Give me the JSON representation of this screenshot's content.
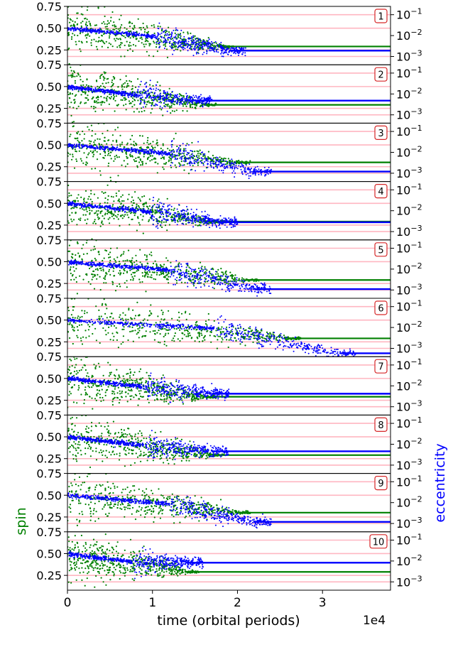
{
  "chart_data": {
    "type": "scatter",
    "panel_count": 10,
    "shared_x_axis": {
      "label": "time (orbital periods)",
      "offset_text": "1e4",
      "range": [
        0,
        3.8
      ],
      "ticks": [
        0,
        1,
        2,
        3
      ],
      "tick_labels": [
        "0",
        "1",
        "2",
        "3"
      ]
    },
    "left_axis": {
      "label": "spin",
      "range": [
        0.08,
        0.75
      ],
      "ticks": [
        0.25,
        0.5,
        0.75
      ],
      "tick_labels": [
        "0.25",
        "0.50",
        "0.75"
      ],
      "color": "#008000"
    },
    "right_axis": {
      "label": "eccentricity",
      "scale": "log",
      "range": [
        0.0004,
        0.25
      ],
      "ticks": [
        0.001,
        0.01,
        0.1
      ],
      "tick_labels": [
        "10",
        "10",
        "10"
      ],
      "tick_exponents": [
        "−3",
        "−2",
        "−1"
      ],
      "color": "#0000ff"
    },
    "reference_lines": {
      "spin_values": [
        0.25,
        0.5
      ],
      "eccentricity_values": [
        0.001,
        0.1
      ],
      "color": "#ffb6c1"
    },
    "series_colors": {
      "spin": "#008000",
      "eccentricity": "#0000ff"
    },
    "panels": [
      {
        "label": "1",
        "spin_final": 0.29,
        "spin_t_settle": 1.8,
        "ecc_initial": 0.022,
        "ecc_final": 0.0019,
        "ecc_t_settle": 1.9
      },
      {
        "label": "2",
        "spin_final": 0.29,
        "spin_t_settle": 1.6,
        "ecc_initial": 0.022,
        "ecc_final": 0.0048,
        "ecc_t_settle": 1.5
      },
      {
        "label": "3",
        "spin_final": 0.3,
        "spin_t_settle": 2.0,
        "ecc_initial": 0.022,
        "ecc_final": 0.0012,
        "ecc_t_settle": 2.2
      },
      {
        "label": "4",
        "spin_final": 0.29,
        "spin_t_settle": 1.7,
        "ecc_initial": 0.022,
        "ecc_final": 0.0028,
        "ecc_t_settle": 1.8
      },
      {
        "label": "5",
        "spin_final": 0.29,
        "spin_t_settle": 2.1,
        "ecc_initial": 0.022,
        "ecc_final": 0.0011,
        "ecc_t_settle": 2.2
      },
      {
        "label": "6",
        "spin_final": 0.29,
        "spin_t_settle": 2.6,
        "ecc_initial": 0.022,
        "ecc_final": 0.00058,
        "ecc_t_settle": 3.2
      },
      {
        "label": "7",
        "spin_final": 0.29,
        "spin_t_settle": 1.6,
        "ecc_initial": 0.022,
        "ecc_final": 0.0042,
        "ecc_t_settle": 1.7
      },
      {
        "label": "8",
        "spin_final": 0.29,
        "spin_t_settle": 1.7,
        "ecc_initial": 0.022,
        "ecc_final": 0.0046,
        "ecc_t_settle": 1.7
      },
      {
        "label": "9",
        "spin_final": 0.3,
        "spin_t_settle": 2.0,
        "ecc_initial": 0.022,
        "ecc_final": 0.0012,
        "ecc_t_settle": 2.2
      },
      {
        "label": "10",
        "spin_final": 0.29,
        "spin_t_settle": 1.4,
        "ecc_initial": 0.022,
        "ecc_final": 0.0083,
        "ecc_t_settle": 1.4
      }
    ]
  }
}
